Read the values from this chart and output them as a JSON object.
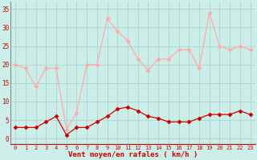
{
  "x": [
    0,
    1,
    2,
    3,
    4,
    5,
    6,
    7,
    8,
    9,
    10,
    11,
    12,
    13,
    14,
    15,
    16,
    17,
    18,
    19,
    20,
    21,
    22,
    23
  ],
  "rafales": [
    20,
    19,
    14,
    19,
    19,
    2.5,
    7,
    20,
    20,
    32.5,
    29,
    26.5,
    21.5,
    18.5,
    21.5,
    21.5,
    24,
    24,
    19,
    34,
    25,
    24,
    25,
    24
  ],
  "moyen": [
    3,
    3,
    3,
    4.5,
    6,
    1,
    3,
    3,
    4.5,
    6,
    8,
    8.5,
    7.5,
    6,
    5.5,
    4.5,
    4.5,
    4.5,
    5.5,
    6.5,
    6.5,
    6.5,
    7.5,
    6.5
  ],
  "rafales_color": "#ffaaaa",
  "moyen_color": "#cc0000",
  "bg_color": "#cceee8",
  "grid_color": "#aacccc",
  "axis_color": "#cc0000",
  "xlabel": "Vent moyen/en rafales ( km/h )",
  "ylim": [
    -1.5,
    37
  ],
  "yticks": [
    0,
    5,
    10,
    15,
    20,
    25,
    30,
    35
  ],
  "xlim": [
    -0.5,
    23.5
  ]
}
